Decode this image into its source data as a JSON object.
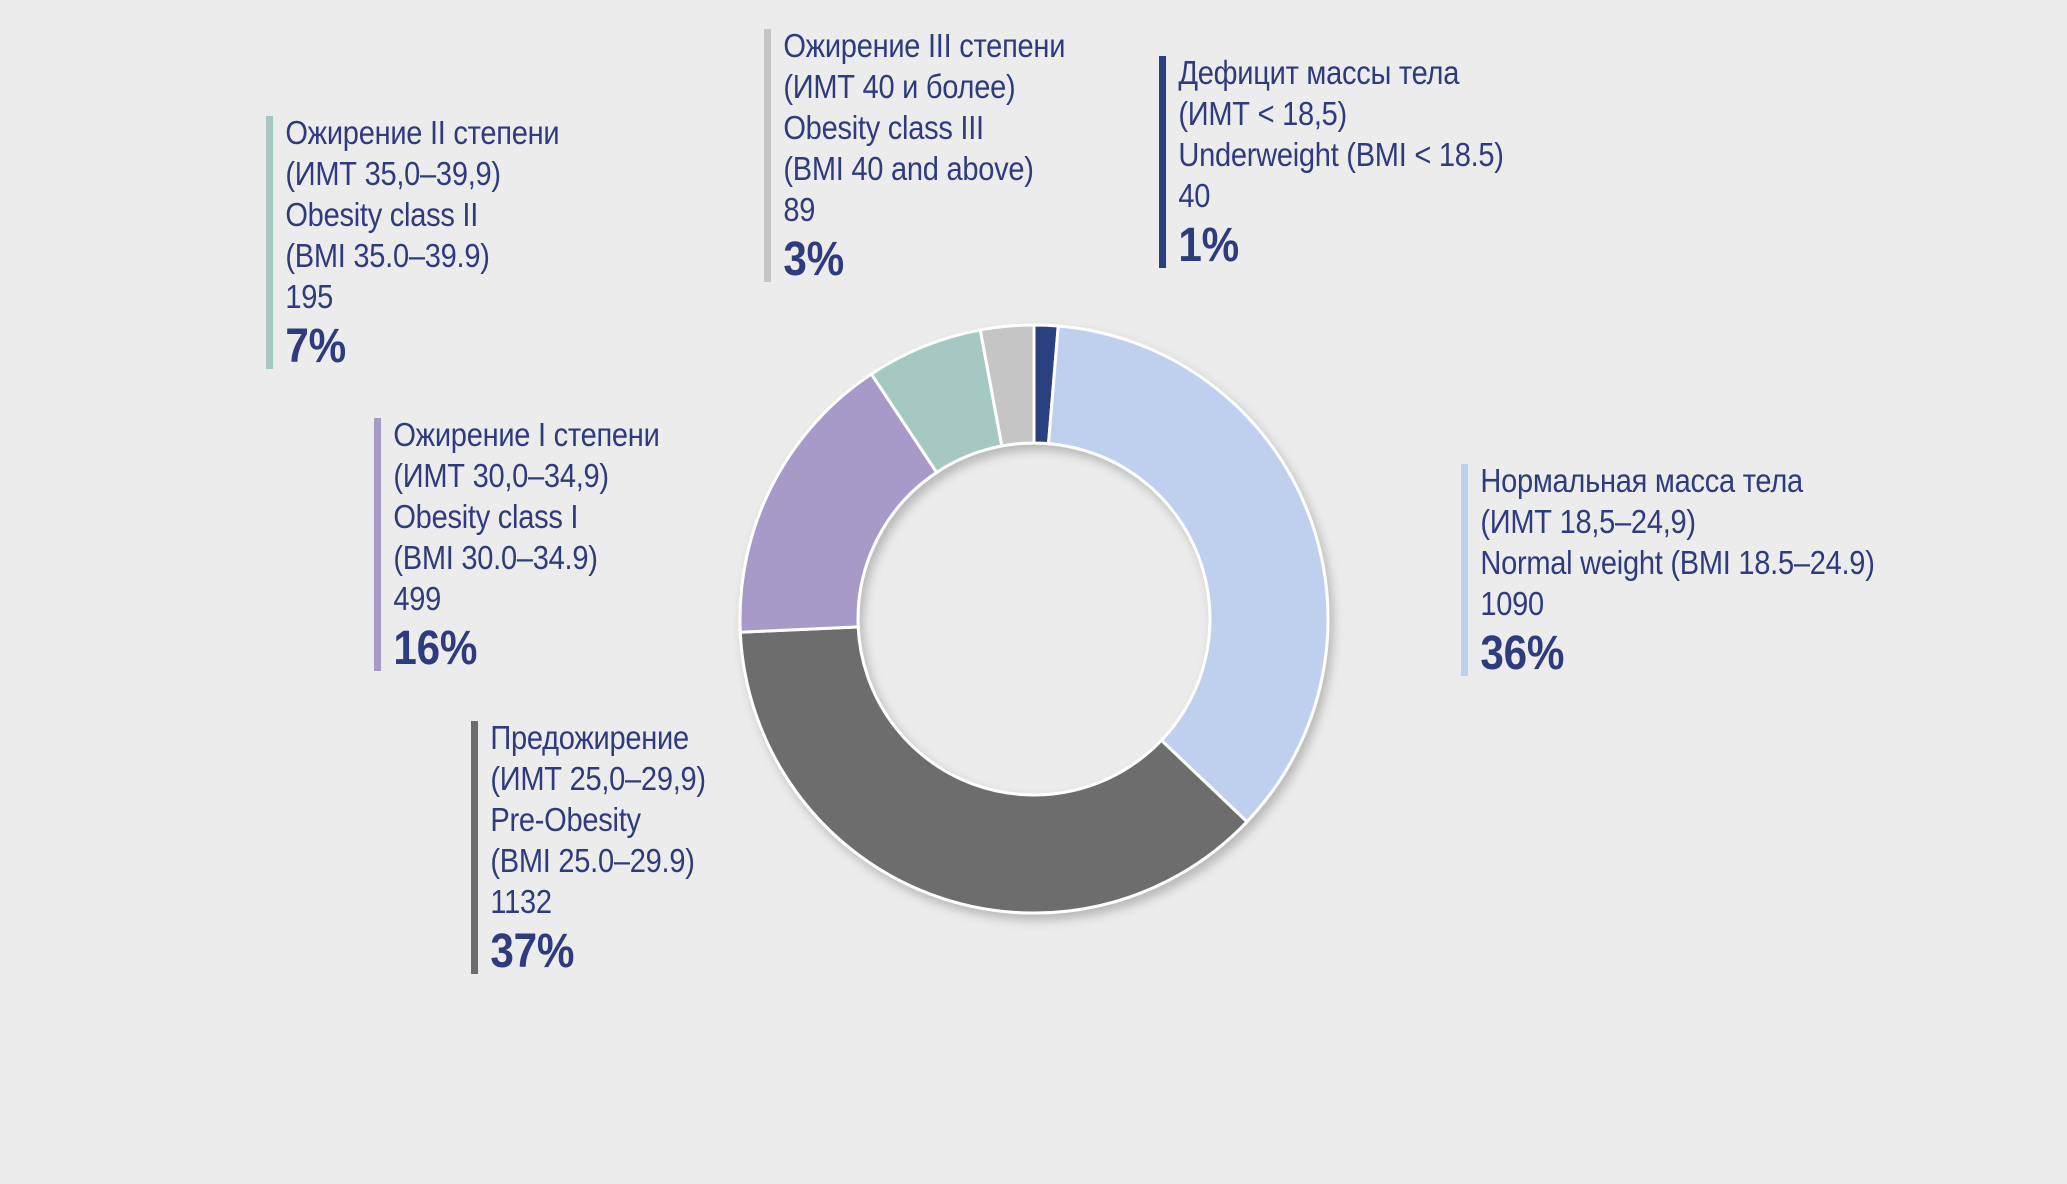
{
  "chart_data": {
    "type": "pie",
    "style": "donut",
    "slices": [
      {
        "key": "underweight",
        "label_ru": "Дефицит массы тела",
        "range_ru": "(ИМТ < 18,5)",
        "label_en": "Underweight (BMI < 18.5)",
        "range_en": "",
        "count": "40",
        "percent": "1%",
        "value": 40,
        "color": "#2a3f7f"
      },
      {
        "key": "normal",
        "label_ru": "Нормальная масса тела",
        "range_ru": "(ИМТ 18,5–24,9)",
        "label_en": "Normal weight (BMI 18.5–24.9)",
        "range_en": "",
        "count": "1090",
        "percent": "36%",
        "value": 1090,
        "color": "#bfd0ee"
      },
      {
        "key": "preobesity",
        "label_ru": "Предожирение",
        "range_ru": "(ИМТ 25,0–29,9)",
        "label_en": "Pre-Obesity",
        "range_en": "(BMI 25.0–29.9)",
        "count": "1132",
        "percent": "37%",
        "value": 1132,
        "color": "#6d6d6d"
      },
      {
        "key": "obesity1",
        "label_ru": "Ожирение I степени",
        "range_ru": "(ИМТ 30,0–34,9)",
        "label_en": "Obesity class I",
        "range_en": "(BMI 30.0–34.9)",
        "count": "499",
        "percent": "16%",
        "value": 499,
        "color": "#a79ac8"
      },
      {
        "key": "obesity2",
        "label_ru": "Ожирение II степени",
        "range_ru": "(ИМТ 35,0–39,9)",
        "label_en": "Obesity class II",
        "range_en": "(BMI 35.0–39.9)",
        "count": "195",
        "percent": "7%",
        "value": 195,
        "color": "#a6c8c2"
      },
      {
        "key": "obesity3",
        "label_ru": "Ожирение III степени",
        "range_ru": "(ИМТ 40 и более)",
        "label_en": "Obesity class III",
        "range_en": "(BMI 40 and above)",
        "count": "89",
        "percent": "3%",
        "value": 89,
        "color": "#c5c5c5"
      }
    ]
  }
}
